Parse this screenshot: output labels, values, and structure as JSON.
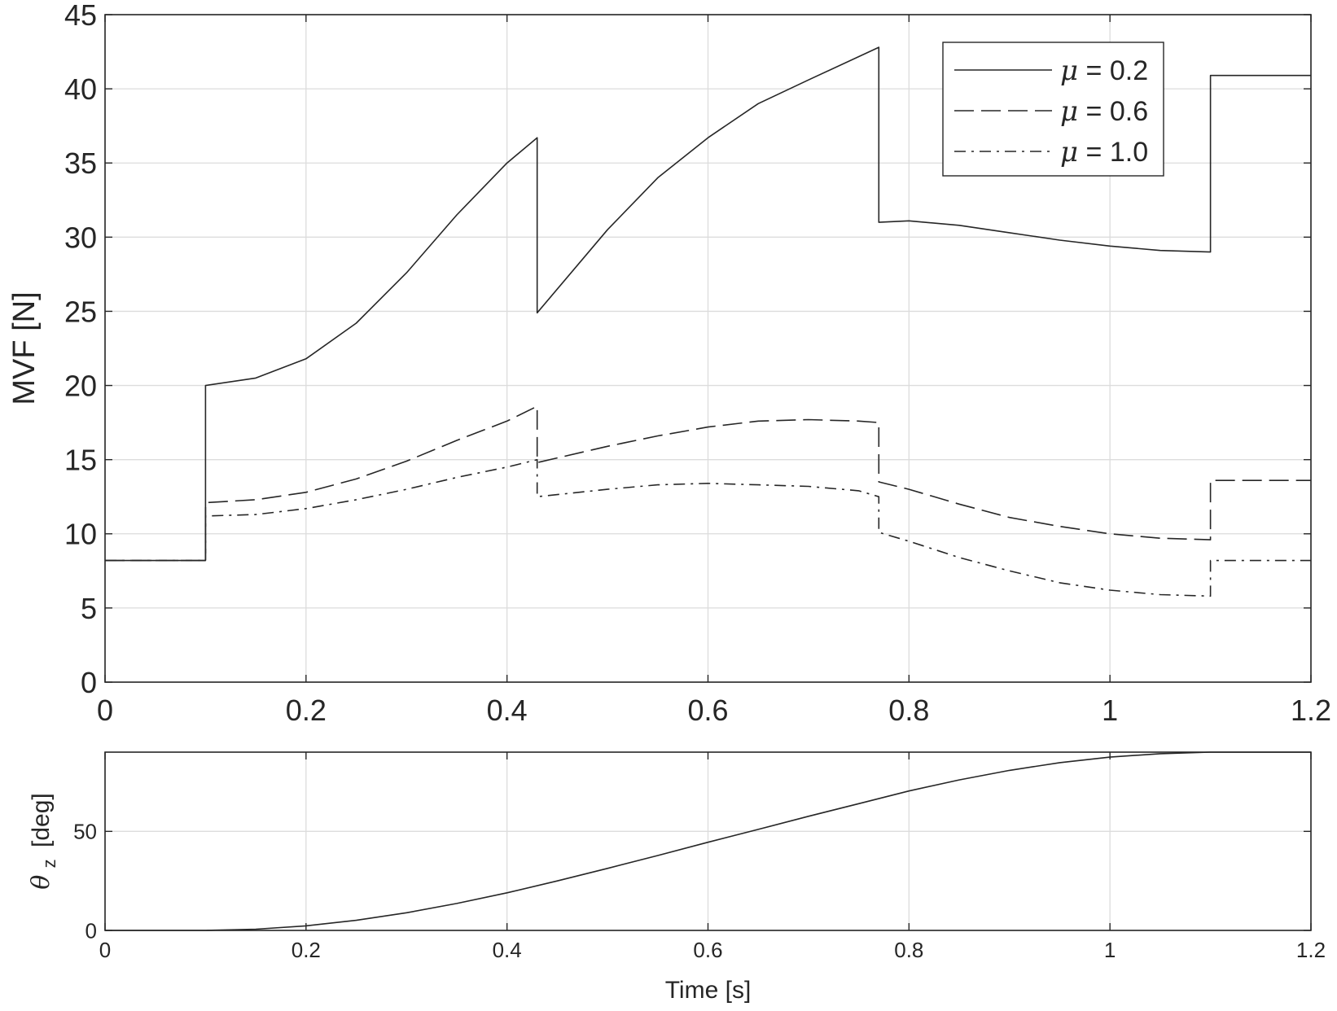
{
  "chart_data": [
    {
      "type": "line",
      "title": "",
      "xlabel": "",
      "ylabel": "MVF [N]",
      "xlim": [
        0,
        1.2
      ],
      "ylim": [
        0,
        45
      ],
      "xticks": [
        "0",
        "0.2",
        "0.4",
        "0.6",
        "0.8",
        "1",
        "1.2"
      ],
      "yticks": [
        "0",
        "5",
        "10",
        "15",
        "20",
        "25",
        "30",
        "35",
        "40",
        "45"
      ],
      "grid": true,
      "legend_position": "top-right",
      "series": [
        {
          "name": "μ = 0.2",
          "legend_symbol": "μ",
          "legend_value": " = 0.2",
          "dash": "solid",
          "x": [
            0,
            0.1,
            0.1,
            0.15,
            0.2,
            0.25,
            0.3,
            0.35,
            0.4,
            0.43,
            0.43,
            0.5,
            0.55,
            0.6,
            0.65,
            0.7,
            0.77,
            0.77,
            0.8,
            0.85,
            0.9,
            0.95,
            1.0,
            1.05,
            1.1,
            1.1,
            1.2
          ],
          "y": [
            8.2,
            8.2,
            20.0,
            20.5,
            21.8,
            24.2,
            27.6,
            31.5,
            35.0,
            36.7,
            24.9,
            30.5,
            34.0,
            36.7,
            39.0,
            40.6,
            42.8,
            31.0,
            31.1,
            30.8,
            30.3,
            29.8,
            29.4,
            29.1,
            29.0,
            40.9,
            40.9
          ]
        },
        {
          "name": "μ = 0.6",
          "legend_symbol": "μ",
          "legend_value": " = 0.6",
          "dash": "dashed",
          "x": [
            0,
            0.1,
            0.1,
            0.15,
            0.2,
            0.25,
            0.3,
            0.35,
            0.4,
            0.43,
            0.43,
            0.5,
            0.55,
            0.6,
            0.65,
            0.7,
            0.75,
            0.77,
            0.77,
            0.8,
            0.85,
            0.9,
            0.95,
            1.0,
            1.05,
            1.1,
            1.1,
            1.2
          ],
          "y": [
            8.2,
            8.2,
            12.1,
            12.3,
            12.8,
            13.7,
            14.9,
            16.3,
            17.6,
            18.6,
            14.8,
            15.9,
            16.6,
            17.2,
            17.6,
            17.7,
            17.6,
            17.5,
            13.5,
            13.0,
            12.0,
            11.1,
            10.5,
            10.0,
            9.7,
            9.6,
            13.6,
            13.6
          ]
        },
        {
          "name": "μ = 1.0",
          "legend_symbol": "μ",
          "legend_value": " = 1.0",
          "dash": "dashdot",
          "x": [
            0,
            0.1,
            0.1,
            0.15,
            0.2,
            0.25,
            0.3,
            0.35,
            0.4,
            0.43,
            0.43,
            0.5,
            0.55,
            0.6,
            0.65,
            0.7,
            0.75,
            0.77,
            0.77,
            0.8,
            0.85,
            0.9,
            0.95,
            1.0,
            1.05,
            1.1,
            1.1,
            1.2
          ],
          "y": [
            8.2,
            8.2,
            11.2,
            11.3,
            11.7,
            12.3,
            13.0,
            13.8,
            14.5,
            15.0,
            12.5,
            13.0,
            13.3,
            13.4,
            13.3,
            13.2,
            12.9,
            12.5,
            10.1,
            9.5,
            8.4,
            7.5,
            6.7,
            6.2,
            5.9,
            5.8,
            8.2,
            8.2
          ]
        }
      ]
    },
    {
      "type": "line",
      "title": "",
      "xlabel": "Time [s]",
      "ylabel_symbol": "θ",
      "ylabel_subscript": "z",
      "ylabel_unit": "[deg]",
      "xlim": [
        0,
        1.2
      ],
      "ylim": [
        0,
        90
      ],
      "xticks": [
        "0",
        "0.2",
        "0.4",
        "0.6",
        "0.8",
        "1",
        "1.2"
      ],
      "yticks": [
        "0",
        "50"
      ],
      "grid": true,
      "series": [
        {
          "dash": "solid",
          "x": [
            0,
            0.05,
            0.1,
            0.15,
            0.2,
            0.25,
            0.3,
            0.35,
            0.4,
            0.45,
            0.5,
            0.55,
            0.6,
            0.65,
            0.7,
            0.75,
            0.8,
            0.85,
            0.9,
            0.95,
            1.0,
            1.05,
            1.1,
            1.15,
            1.2
          ],
          "y": [
            0,
            0,
            0,
            0.6,
            2.3,
            5.1,
            8.9,
            13.6,
            19.0,
            25.0,
            31.3,
            37.8,
            44.5,
            51.0,
            57.6,
            64.0,
            70.4,
            76.0,
            80.8,
            84.7,
            87.5,
            89.2,
            90.0,
            90.0,
            90.0
          ]
        }
      ]
    }
  ]
}
